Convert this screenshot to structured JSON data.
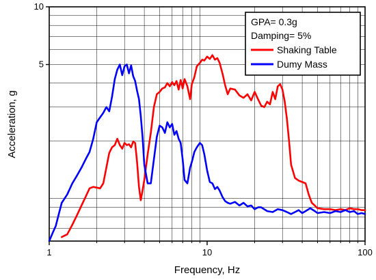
{
  "chart_data": {
    "type": "line",
    "title": "",
    "xlabel": "Frequency, Hz",
    "ylabel": "Acceleration, g",
    "x_scale": "log",
    "y_scale": "log",
    "xlim": [
      1,
      100
    ],
    "ylim": [
      0.6,
      10
    ],
    "x_tick_labels": [
      "1",
      "10",
      "100"
    ],
    "y_tick_labels": [
      "5",
      "10"
    ],
    "grid": true,
    "legend_position": "top-right",
    "annotations": [
      "GPA= 0.3g",
      "Damping= 5%"
    ],
    "series": [
      {
        "name": "Shaking Table",
        "color": "#ff0000",
        "x": [
          1.2,
          1.3,
          1.4,
          1.5,
          1.6,
          1.7,
          1.8,
          1.9,
          2.0,
          2.1,
          2.2,
          2.3,
          2.4,
          2.5,
          2.6,
          2.7,
          2.8,
          2.9,
          3.0,
          3.1,
          3.2,
          3.3,
          3.4,
          3.5,
          3.6,
          3.7,
          3.8,
          3.9,
          4.0,
          4.2,
          4.4,
          4.6,
          4.8,
          5.0,
          5.2,
          5.4,
          5.6,
          5.8,
          6.0,
          6.2,
          6.4,
          6.6,
          6.8,
          7.0,
          7.2,
          7.5,
          7.8,
          8.0,
          8.3,
          8.6,
          9.0,
          9.3,
          9.6,
          10.0,
          10.4,
          10.8,
          11.2,
          11.6,
          12.0,
          12.5,
          13.0,
          13.5,
          14.0,
          15.0,
          16.0,
          17.0,
          18.0,
          19.0,
          20.0,
          21.0,
          22.0,
          23.0,
          24.0,
          25.0,
          26.0,
          27.0,
          28.0,
          29.0,
          30.0,
          31.0,
          32.0,
          33.0,
          34.0,
          36.0,
          38.0,
          40.0,
          42.0,
          44.0,
          46.0,
          48.0,
          50.0,
          55.0,
          60.0,
          65.0,
          70.0,
          75.0,
          80.0,
          85.0,
          90.0,
          95.0,
          100.0
        ],
        "y": [
          0.63,
          0.65,
          0.73,
          0.82,
          0.92,
          1.02,
          1.13,
          1.15,
          1.14,
          1.13,
          1.2,
          1.45,
          1.73,
          1.85,
          1.9,
          2.05,
          1.9,
          1.82,
          1.95,
          1.9,
          1.92,
          1.85,
          1.98,
          1.95,
          1.55,
          1.15,
          0.98,
          1.1,
          1.25,
          1.7,
          2.2,
          3.0,
          3.5,
          3.6,
          3.75,
          3.8,
          4.0,
          3.85,
          4.05,
          3.9,
          4.1,
          3.7,
          4.15,
          3.75,
          4.2,
          3.85,
          3.3,
          3.95,
          4.3,
          4.9,
          5.1,
          5.3,
          5.25,
          5.5,
          5.35,
          5.6,
          5.3,
          5.4,
          5.1,
          4.5,
          3.9,
          3.5,
          3.75,
          3.7,
          3.45,
          3.35,
          3.5,
          3.25,
          3.6,
          3.3,
          3.05,
          3.0,
          3.2,
          3.1,
          3.6,
          3.3,
          3.85,
          3.95,
          3.7,
          3.2,
          2.6,
          2.0,
          1.5,
          1.28,
          1.24,
          1.22,
          1.2,
          1.05,
          0.95,
          0.92,
          0.89,
          0.88,
          0.88,
          0.87,
          0.88,
          0.87,
          0.89,
          0.88,
          0.88,
          0.87,
          0.87
        ]
      },
      {
        "name": "Dumy Mass",
        "color": "#0000ff",
        "x": [
          1.0,
          1.05,
          1.1,
          1.15,
          1.2,
          1.3,
          1.4,
          1.5,
          1.6,
          1.7,
          1.8,
          1.9,
          2.0,
          2.1,
          2.2,
          2.3,
          2.4,
          2.5,
          2.6,
          2.7,
          2.8,
          2.9,
          3.0,
          3.1,
          3.2,
          3.3,
          3.4,
          3.5,
          3.6,
          3.7,
          3.8,
          3.9,
          4.0,
          4.2,
          4.4,
          4.6,
          4.8,
          5.0,
          5.2,
          5.4,
          5.6,
          5.8,
          6.0,
          6.2,
          6.4,
          6.6,
          6.8,
          7.0,
          7.2,
          7.5,
          7.8,
          8.0,
          8.3,
          8.6,
          9.0,
          9.3,
          9.6,
          10.0,
          10.4,
          10.8,
          11.2,
          11.6,
          12.0,
          12.5,
          13.0,
          13.5,
          14.0,
          15.0,
          16.0,
          17.0,
          18.0,
          19.0,
          20.0,
          21.0,
          22.0,
          24.0,
          26.0,
          28.0,
          30.0,
          32.0,
          34.0,
          36.0,
          38.0,
          40.0,
          42.0,
          45.0,
          48.0,
          50.0,
          55.0,
          60.0,
          65.0,
          70.0,
          75.0,
          80.0,
          85.0,
          90.0,
          95.0,
          100.0
        ],
        "y": [
          0.6,
          0.66,
          0.72,
          0.83,
          0.95,
          1.05,
          1.2,
          1.32,
          1.45,
          1.6,
          1.75,
          2.05,
          2.5,
          2.65,
          2.8,
          3.0,
          2.85,
          3.4,
          4.2,
          4.7,
          5.0,
          4.4,
          4.9,
          5.0,
          4.5,
          4.95,
          4.35,
          4.1,
          3.65,
          3.3,
          2.7,
          2.1,
          1.5,
          1.2,
          1.2,
          1.6,
          2.1,
          2.4,
          2.35,
          2.2,
          2.5,
          2.35,
          2.45,
          2.15,
          2.25,
          2.05,
          1.95,
          1.6,
          1.25,
          1.2,
          1.45,
          1.55,
          1.75,
          1.85,
          1.95,
          1.9,
          1.7,
          1.4,
          1.22,
          1.2,
          1.12,
          1.15,
          1.1,
          1.02,
          0.97,
          0.95,
          0.94,
          0.96,
          0.92,
          0.95,
          0.91,
          0.92,
          0.88,
          0.9,
          0.9,
          0.86,
          0.85,
          0.88,
          0.87,
          0.85,
          0.83,
          0.85,
          0.87,
          0.84,
          0.86,
          0.89,
          0.86,
          0.84,
          0.85,
          0.84,
          0.86,
          0.85,
          0.87,
          0.85,
          0.86,
          0.83,
          0.84,
          0.83
        ]
      }
    ]
  }
}
